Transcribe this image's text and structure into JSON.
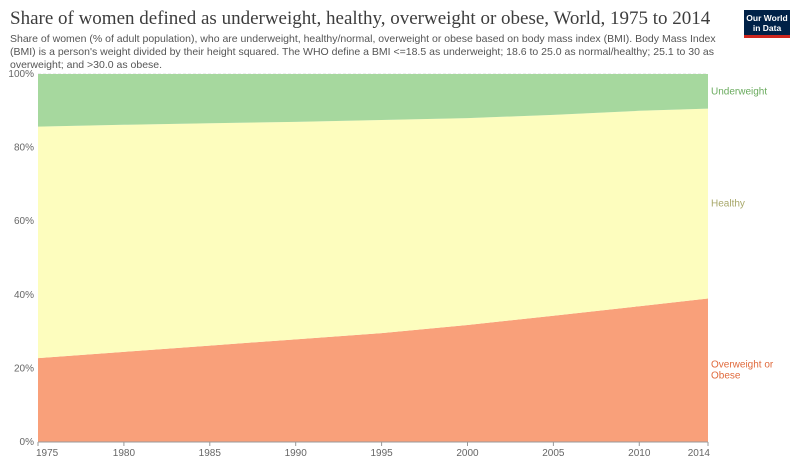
{
  "header": {
    "title": "Share of women defined as underweight, healthy, overweight or obese, World, 1975 to 2014",
    "subtitle": "Share of women (% of adult population), who are underweight, healthy/normal, overweight or obese based on body mass index (BMI). Body Mass Index (BMI) is a person's weight divided by their height squared. The WHO define a BMI <=18.5 as underweight; 18.6 to 25.0 as normal/healthy; 25.1 to 30 as overweight; and >30.0 as obese.",
    "logo_line1": "Our World",
    "logo_line2": "in Data"
  },
  "colors": {
    "underweight": "#a6d89e",
    "healthy": "#fdfdbe",
    "overweight": "#f9a07a",
    "underweight_label": "#6aab5e",
    "healthy_label": "#a8a86a",
    "overweight_label": "#e06a3c",
    "grid": "#dddddd",
    "logo_bg": "#002147",
    "logo_accent": "#ce261e"
  },
  "chart_data": {
    "type": "area",
    "stacked": true,
    "x": [
      1975,
      1980,
      1985,
      1990,
      1995,
      2000,
      2005,
      2010,
      2014
    ],
    "xticks": [
      "1975",
      "1980",
      "1985",
      "1990",
      "1995",
      "2000",
      "2005",
      "2010",
      "2014"
    ],
    "yticks": [
      "0%",
      "20%",
      "40%",
      "60%",
      "80%",
      "100%"
    ],
    "ylim": [
      0,
      100
    ],
    "xlim": [
      1975,
      2014
    ],
    "grid": true,
    "series": [
      {
        "name": "Overweight or Obese",
        "label_lines": [
          "Overweight or",
          "Obese"
        ],
        "color_key": "overweight",
        "values": [
          22.8,
          24.5,
          26.2,
          27.9,
          29.6,
          31.8,
          34.3,
          36.9,
          39.0
        ]
      },
      {
        "name": "Healthy",
        "label_lines": [
          "Healthy"
        ],
        "color_key": "healthy",
        "values": [
          62.9,
          61.7,
          60.4,
          59.1,
          57.9,
          56.2,
          54.6,
          53.1,
          51.6
        ]
      },
      {
        "name": "Underweight",
        "label_lines": [
          "Underweight"
        ],
        "color_key": "underweight",
        "values": [
          14.3,
          13.8,
          13.4,
          13.0,
          12.5,
          12.0,
          11.1,
          10.0,
          9.4
        ]
      }
    ]
  }
}
